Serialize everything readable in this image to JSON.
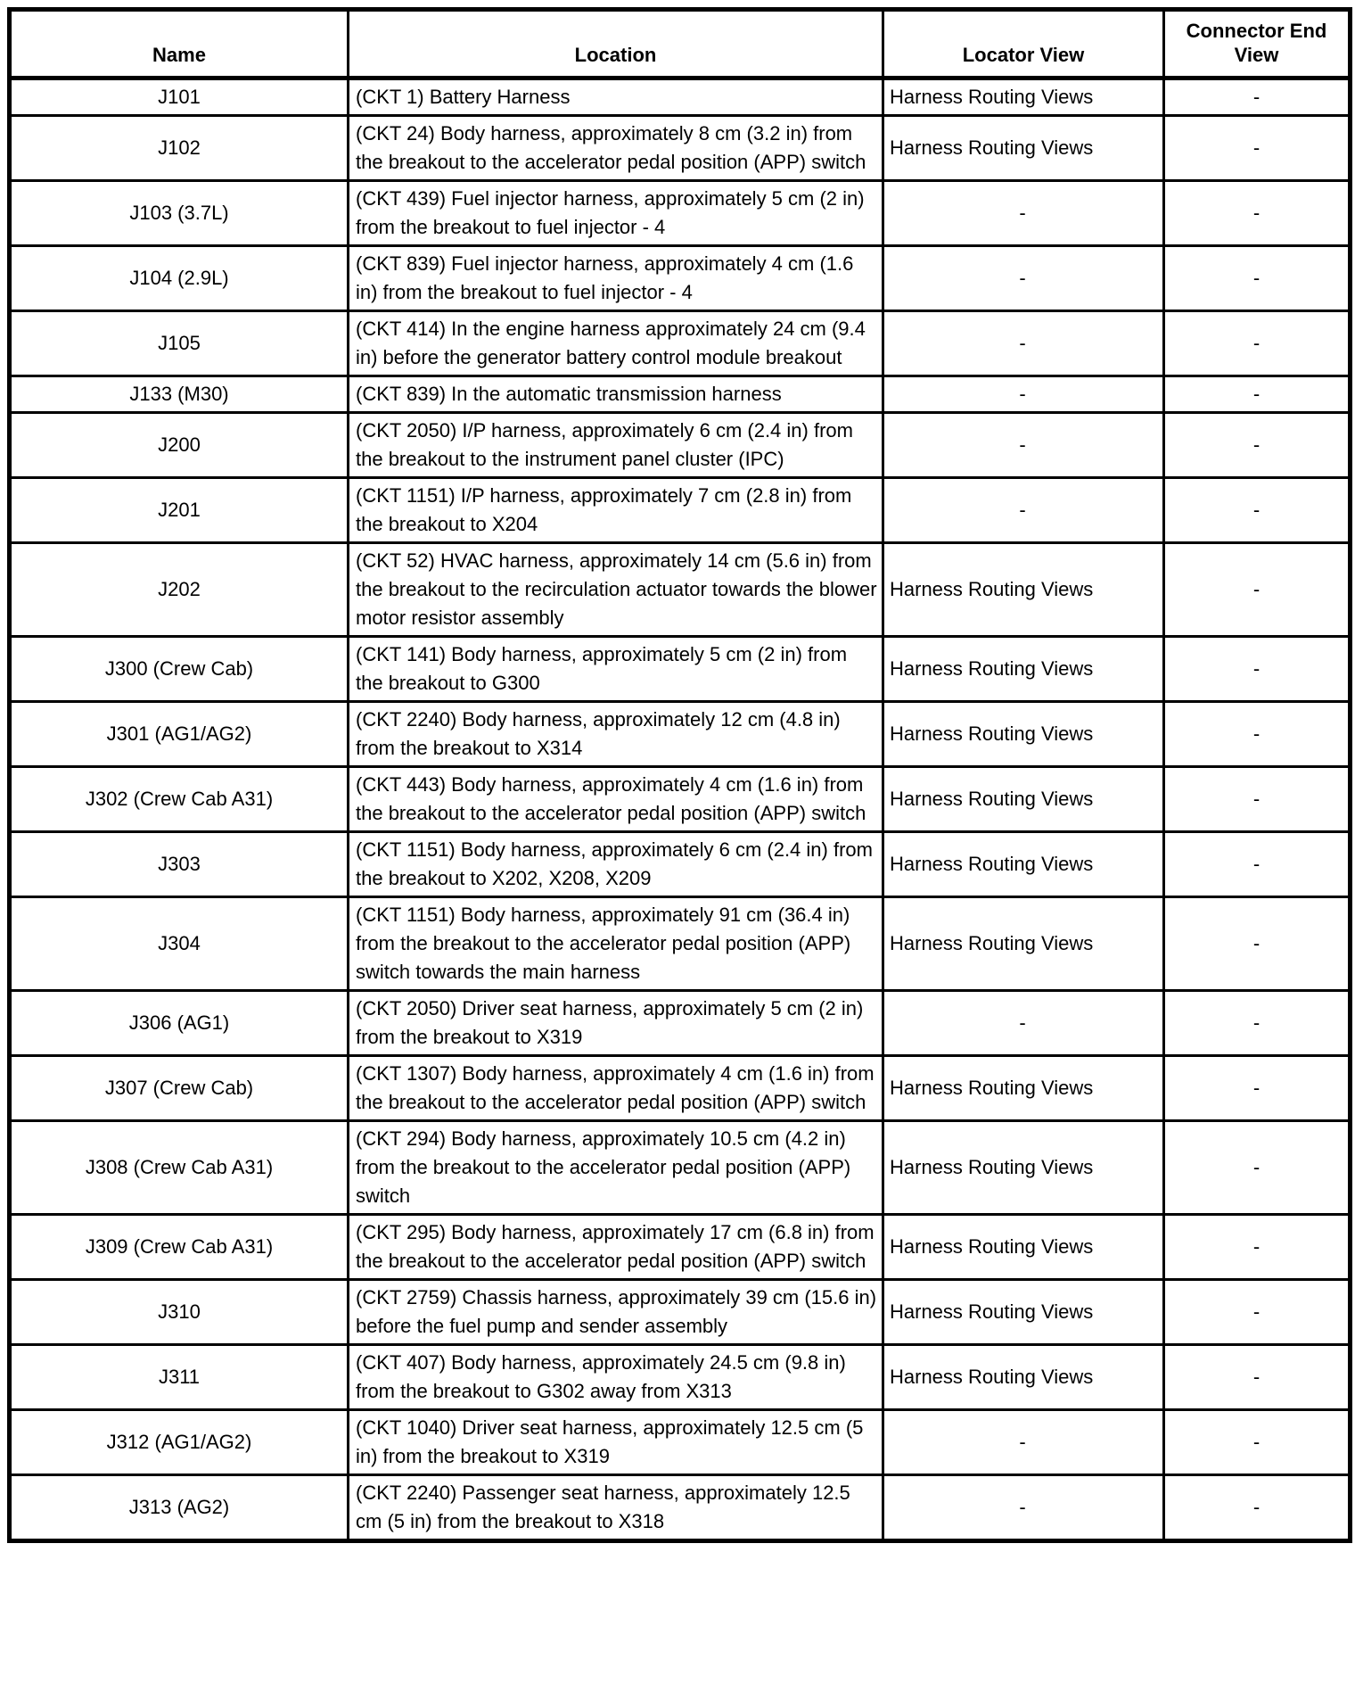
{
  "table": {
    "title": "splice-location-table",
    "columns": [
      {
        "label": "Name"
      },
      {
        "label": "Location"
      },
      {
        "label": "Locator View"
      },
      {
        "label": "Connector End View"
      }
    ],
    "empty_cell_marker": "-",
    "rows": [
      {
        "name": "J101",
        "location": "(CKT 1) Battery Harness",
        "locator_view": "Harness Routing Views",
        "connector_end_view": "-"
      },
      {
        "name": "J102",
        "location": "(CKT 24) Body harness, approximately 8 cm (3.2 in) from the breakout to the accelerator pedal position (APP) switch",
        "locator_view": "Harness Routing Views",
        "connector_end_view": "-"
      },
      {
        "name": "J103 (3.7L)",
        "location": "(CKT 439) Fuel injector harness, approximately 5 cm (2 in) from the breakout to fuel injector - 4",
        "locator_view": "-",
        "connector_end_view": "-"
      },
      {
        "name": "J104 (2.9L)",
        "location": "(CKT 839) Fuel injector harness, approximately 4 cm (1.6 in) from the breakout to fuel injector - 4",
        "locator_view": "-",
        "connector_end_view": "-"
      },
      {
        "name": "J105",
        "location": "(CKT 414) In the engine harness approximately 24 cm (9.4 in) before the generator battery control module breakout",
        "locator_view": "-",
        "connector_end_view": "-"
      },
      {
        "name": "J133 (M30)",
        "location": "(CKT 839) In the automatic transmission harness",
        "locator_view": "-",
        "connector_end_view": "-"
      },
      {
        "name": "J200",
        "location": "(CKT 2050) I/P harness, approximately 6 cm (2.4 in) from the breakout to the instrument panel cluster (IPC)",
        "locator_view": "-",
        "connector_end_view": "-"
      },
      {
        "name": "J201",
        "location": "(CKT 1151) I/P harness, approximately 7 cm (2.8 in) from the breakout to X204",
        "locator_view": "-",
        "connector_end_view": "-"
      },
      {
        "name": "J202",
        "location": "(CKT 52) HVAC harness, approximately 14 cm (5.6 in) from the breakout to the recirculation actuator towards the blower motor resistor assembly",
        "locator_view": "Harness Routing Views",
        "connector_end_view": "-"
      },
      {
        "name": "J300 (Crew Cab)",
        "location": "(CKT 141) Body harness, approximately 5 cm (2 in) from the breakout to G300",
        "locator_view": "Harness Routing Views",
        "connector_end_view": "-"
      },
      {
        "name": "J301 (AG1/AG2)",
        "location": "(CKT 2240) Body harness, approximately 12 cm (4.8 in) from the breakout to X314",
        "locator_view": "Harness Routing Views",
        "connector_end_view": "-"
      },
      {
        "name": "J302 (Crew Cab A31)",
        "location": "(CKT 443) Body harness, approximately 4 cm (1.6 in) from the breakout to the accelerator pedal position (APP) switch",
        "locator_view": "Harness Routing Views",
        "connector_end_view": "-"
      },
      {
        "name": "J303",
        "location": "(CKT 1151) Body harness, approximately 6 cm (2.4 in) from the breakout to X202, X208, X209",
        "locator_view": "Harness Routing Views",
        "connector_end_view": "-"
      },
      {
        "name": "J304",
        "location": "(CKT 1151) Body harness, approximately 91 cm (36.4 in) from the breakout to the accelerator pedal position (APP) switch towards the main harness",
        "locator_view": "Harness Routing Views",
        "connector_end_view": "-"
      },
      {
        "name": "J306 (AG1)",
        "location": "(CKT 2050) Driver seat harness, approximately 5 cm (2 in) from the breakout to X319",
        "locator_view": "-",
        "connector_end_view": "-"
      },
      {
        "name": "J307 (Crew Cab)",
        "location": "(CKT 1307) Body harness, approximately 4 cm (1.6 in) from the breakout to the accelerator pedal position (APP) switch",
        "locator_view": "Harness Routing Views",
        "connector_end_view": "-"
      },
      {
        "name": "J308 (Crew Cab A31)",
        "location": "(CKT 294) Body harness, approximately 10.5 cm (4.2 in) from the breakout to the accelerator pedal position (APP) switch",
        "locator_view": "Harness Routing Views",
        "connector_end_view": "-"
      },
      {
        "name": "J309 (Crew Cab A31)",
        "location": "(CKT 295) Body harness, approximately 17 cm (6.8 in) from the breakout to the accelerator pedal position (APP) switch",
        "locator_view": "Harness Routing Views",
        "connector_end_view": "-"
      },
      {
        "name": "J310",
        "location": "(CKT 2759) Chassis harness, approximately 39 cm (15.6 in) before the fuel pump and sender assembly",
        "locator_view": "Harness Routing Views",
        "connector_end_view": "-"
      },
      {
        "name": "J311",
        "location": "(CKT 407) Body harness, approximately 24.5 cm (9.8 in) from the breakout to G302 away from X313",
        "locator_view": "Harness Routing Views",
        "connector_end_view": "-"
      },
      {
        "name": "J312 (AG1/AG2)",
        "location": "(CKT 1040) Driver seat harness, approximately 12.5 cm (5 in) from the breakout to X319",
        "locator_view": "-",
        "connector_end_view": "-"
      },
      {
        "name": "J313 (AG2)",
        "location": "(CKT 2240) Passenger seat harness, approximately 12.5 cm (5 in) from the breakout to X318",
        "locator_view": "-",
        "connector_end_view": "-"
      }
    ]
  }
}
